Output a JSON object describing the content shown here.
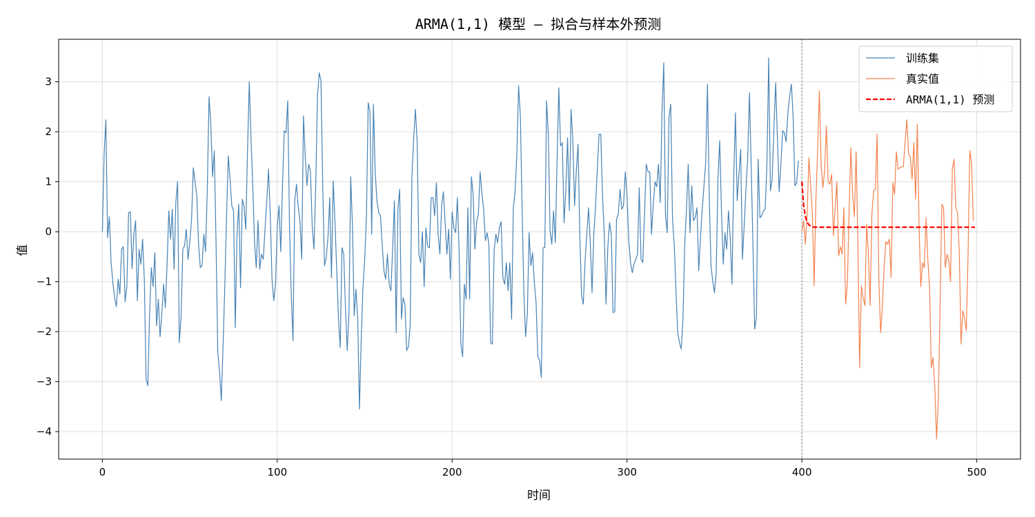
{
  "chart_data": {
    "type": "line",
    "title": "ARMA(1,1) 模型 — 拟合与样本外预测",
    "xlabel": "时间",
    "ylabel": "值",
    "xlim": [
      -25,
      525
    ],
    "ylim": [
      -4.55,
      3.85
    ],
    "xticks": [
      0,
      100,
      200,
      300,
      400,
      500
    ],
    "yticks": [
      -4,
      -3,
      -2,
      -1,
      0,
      1,
      2,
      3
    ],
    "grid": true,
    "legend_position": "upper right",
    "split_line": {
      "x": 400,
      "style": "dotted",
      "color": "#b0b0b0"
    },
    "series": [
      {
        "name": "训练集",
        "color": "#4682b4",
        "style": "solid",
        "x_start": 0,
        "values": [
          0.0,
          1.55,
          2.24,
          -0.12,
          0.3,
          -0.62,
          -1.02,
          -1.32,
          -1.5,
          -0.95,
          -1.25,
          -0.35,
          -0.3,
          -1.4,
          -1.1,
          0.38,
          0.4,
          -0.74,
          -0.05,
          0.22,
          -1.38,
          -0.35,
          -0.65,
          -0.15,
          -0.95,
          -2.95,
          -3.08,
          -1.65,
          -0.72,
          -1.1,
          -0.42,
          -1.88,
          -1.35,
          -2.1,
          -1.65,
          -1.05,
          -1.52,
          -0.65,
          0.42,
          -0.15,
          0.45,
          -0.75,
          0.58,
          1.0,
          -2.22,
          -1.7,
          -0.35,
          -0.28,
          0.05,
          -0.55,
          -0.2,
          0.25,
          1.28,
          1.0,
          0.72,
          -0.25,
          -0.72,
          -0.68,
          -0.05,
          -0.4,
          0.85,
          2.7,
          2.15,
          1.1,
          1.62,
          -0.22,
          -2.43,
          -2.8,
          -3.38,
          -2.3,
          -1.1,
          0.3,
          1.52,
          1.05,
          0.52,
          0.42,
          -1.92,
          -0.05,
          0.55,
          -1.12,
          0.65,
          0.52,
          0.05,
          1.62,
          3.0,
          1.85,
          0.92,
          -0.2,
          -0.72,
          0.22,
          -0.75,
          -0.45,
          -0.55,
          0.05,
          0.6,
          1.25,
          0.35,
          -0.95,
          -1.38,
          -1.05,
          0.1,
          0.52,
          -0.4,
          0.92,
          2.02,
          1.98,
          2.62,
          0.12,
          -1.25,
          -2.18,
          0.62,
          0.95,
          0.5,
          0.2,
          -0.55,
          2.32,
          1.5,
          0.92,
          1.35,
          1.2,
          0.1,
          -0.35,
          0.92,
          2.72,
          3.18,
          3.02,
          0.92,
          -0.68,
          -0.52,
          -0.12,
          0.68,
          -0.92,
          1.02,
          0.2,
          -0.75,
          -1.75,
          -2.32,
          -0.32,
          -0.45,
          -1.52,
          -2.38,
          -1.65,
          1.1,
          0.12,
          -1.68,
          -1.15,
          -1.72,
          -3.55,
          -2.15,
          -1.12,
          -0.55,
          0.32,
          2.58,
          2.4,
          -0.05,
          2.55,
          1.2,
          0.62,
          0.38,
          0.32,
          -0.25,
          -0.78,
          -0.95,
          -0.45,
          -1.05,
          -1.18,
          -0.32,
          0.62,
          -2.02,
          0.45,
          0.85,
          -1.75,
          -1.32,
          -1.45,
          -2.38,
          -2.3,
          -1.88,
          1.1,
          1.85,
          2.45,
          1.8,
          -0.45,
          -0.62,
          0.0,
          -1.1,
          0.08,
          -0.3,
          -0.32,
          0.68,
          0.68,
          0.32,
          0.98,
          -0.05,
          -0.45,
          0.52,
          0.8,
          0.18,
          -0.45,
          0.05,
          -0.95,
          0.4,
          0.08,
          -0.02,
          0.68,
          -0.42,
          -2.25,
          -2.5,
          -1.05,
          -1.35,
          0.48,
          -1.35,
          1.1,
          0.75,
          -0.35,
          0.2,
          0.35,
          1.2,
          0.78,
          0.45,
          -0.18,
          -0.02,
          -0.25,
          -2.22,
          -2.25,
          -0.38,
          -0.05,
          -0.22,
          0.08,
          0.2,
          -0.92,
          -1.05,
          -0.62,
          -1.18,
          -0.62,
          -1.75,
          0.48,
          0.8,
          1.55,
          2.92,
          2.32,
          0.5,
          -1.2,
          -2.1,
          -1.65,
          -0.02,
          -0.68,
          -0.42,
          -1.02,
          -1.42,
          -2.5,
          -2.58,
          -2.92,
          -0.32,
          -0.32,
          2.62,
          1.95,
          0.02,
          -0.25,
          0.42,
          -0.22,
          1.45,
          2.88,
          1.72,
          1.78,
          0.18,
          0.82,
          1.88,
          0.42,
          2.45,
          1.85,
          0.52,
          1.22,
          1.75,
          -0.05,
          -1.28,
          -1.45,
          -0.6,
          -0.05,
          0.48,
          -0.22,
          -1.22,
          -0.05,
          0.5,
          1.25,
          1.95,
          1.95,
          0.7,
          -0.05,
          -1.45,
          -0.32,
          0.18,
          -0.05,
          -1.62,
          -1.6,
          0.25,
          0.35,
          0.85,
          0.45,
          0.52,
          1.2,
          0.72,
          -0.18,
          -0.62,
          -0.82,
          -0.65,
          -0.55,
          -0.45,
          0.88,
          -0.55,
          -0.62,
          0.35,
          1.35,
          1.2,
          1.2,
          -0.05,
          0.55,
          1.0,
          0.9,
          1.35,
          0.58,
          2.38,
          3.38,
          0.32,
          -0.02,
          2.3,
          2.55,
          0.25,
          -0.25,
          -1.2,
          -2.02,
          -2.22,
          -2.35,
          -1.75,
          -0.25,
          0.45,
          1.35,
          -0.02,
          0.92,
          0.22,
          0.28,
          0.48,
          -0.78,
          -0.12,
          0.45,
          0.92,
          1.38,
          2.95,
          0.72,
          -0.68,
          -0.98,
          -1.22,
          -0.82,
          1.05,
          1.82,
          0.42,
          -0.65,
          -0.02,
          -0.35,
          0.42,
          -0.12,
          -1.05,
          1.02,
          2.38,
          0.62,
          1.15,
          1.65,
          -0.55,
          0.12,
          0.85,
          1.48,
          2.78,
          1.32,
          -0.25,
          -1.95,
          -1.72,
          1.45,
          0.28,
          0.32,
          0.42,
          0.45,
          1.35,
          3.48,
          0.82,
          1.05,
          2.08,
          2.98,
          1.85,
          0.8,
          1.35,
          2.02,
          1.98,
          1.8,
          2.38,
          2.72,
          2.95,
          2.28,
          0.92,
          0.98,
          1.42
        ]
      },
      {
        "name": "真实值",
        "color": "#f4804d",
        "style": "solid",
        "x_start": 400,
        "values": [
          0.0,
          0.22,
          -0.25,
          0.35,
          1.48,
          0.92,
          0.35,
          -1.08,
          0.62,
          1.65,
          2.82,
          1.35,
          0.88,
          1.22,
          2.12,
          1.0,
          0.95,
          1.15,
          -0.08,
          0.45,
          1.0,
          -0.48,
          -0.3,
          -0.45,
          0.48,
          -1.45,
          -1.05,
          0.45,
          1.68,
          0.75,
          0.3,
          1.6,
          -0.22,
          -2.72,
          -1.08,
          -1.32,
          -1.48,
          0.15,
          -0.42,
          -1.48,
          0.35,
          0.82,
          0.85,
          1.95,
          -0.95,
          -2.02,
          -1.52,
          -0.72,
          -0.2,
          -0.25,
          -0.15,
          -0.92,
          0.98,
          0.75,
          1.6,
          1.25,
          1.28,
          1.3,
          1.3,
          1.8,
          2.24,
          1.55,
          1.5,
          1.05,
          1.78,
          0.65,
          2.15,
          0.1,
          -1.1,
          -0.62,
          -0.72,
          0.28,
          -0.55,
          -1.1,
          -2.72,
          -2.52,
          -3.12,
          -4.15,
          -3.35,
          -1.5,
          0.55,
          0.48,
          -0.72,
          -0.45,
          -0.58,
          -1.0,
          1.25,
          1.45,
          0.48,
          0.38,
          -0.42,
          -2.25,
          -1.58,
          -1.72,
          -1.98,
          -0.48,
          1.62,
          1.38,
          0.22
        ]
      },
      {
        "name": "ARMA(1,1) 预测",
        "color": "#ff0000",
        "style": "dashed",
        "x_start": 400,
        "values": [
          1.0,
          0.52,
          0.3,
          0.19,
          0.14,
          0.11,
          0.1,
          0.09,
          0.09,
          0.09,
          0.09,
          0.09,
          0.09,
          0.09,
          0.09,
          0.09,
          0.09,
          0.09,
          0.09,
          0.09,
          0.09,
          0.09,
          0.09,
          0.09,
          0.09,
          0.09,
          0.09,
          0.09,
          0.09,
          0.09,
          0.09,
          0.09,
          0.09,
          0.09,
          0.09,
          0.09,
          0.09,
          0.09,
          0.09,
          0.09,
          0.09,
          0.09,
          0.09,
          0.09,
          0.09,
          0.09,
          0.09,
          0.09,
          0.09,
          0.09,
          0.09,
          0.09,
          0.09,
          0.09,
          0.09,
          0.09,
          0.09,
          0.09,
          0.09,
          0.09,
          0.09,
          0.09,
          0.09,
          0.09,
          0.09,
          0.09,
          0.09,
          0.09,
          0.09,
          0.09,
          0.09,
          0.09,
          0.09,
          0.09,
          0.09,
          0.09,
          0.09,
          0.09,
          0.09,
          0.09,
          0.09,
          0.09,
          0.09,
          0.09,
          0.09,
          0.09,
          0.09,
          0.09,
          0.09,
          0.09,
          0.09,
          0.09,
          0.09,
          0.09,
          0.09,
          0.09,
          0.09,
          0.09,
          0.09,
          0.09
        ]
      }
    ]
  }
}
